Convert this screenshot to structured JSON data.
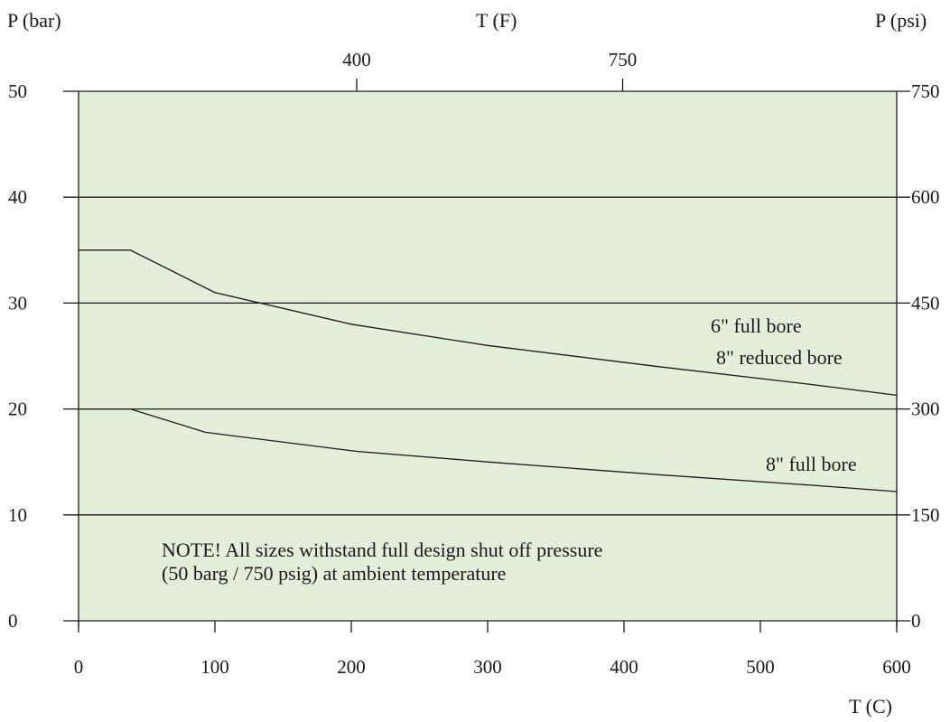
{
  "chart_data": {
    "type": "line",
    "x_axis": {
      "label": "T (C)",
      "range": [
        0,
        600
      ],
      "ticks": [
        0,
        100,
        200,
        300,
        400,
        500,
        600
      ]
    },
    "x_axis_top": {
      "label": "T (F)",
      "ticks": [
        {
          "label": "400",
          "celsius": 204
        },
        {
          "label": "750",
          "celsius": 399
        }
      ]
    },
    "y_axis_left": {
      "label": "P (bar)",
      "range": [
        0,
        50
      ],
      "ticks": [
        0,
        10,
        20,
        30,
        40,
        50
      ]
    },
    "y_axis_right": {
      "label": "P (psi)",
      "ticks": [
        "0",
        "150",
        "300",
        "450",
        "600",
        "750"
      ]
    },
    "grid": {
      "horizontal": true,
      "vertical": false
    },
    "background_color": "#e4efdb",
    "series": [
      {
        "label_lines": [
          "6\" full bore",
          "8\" reduced bore"
        ],
        "x": [
          0,
          38,
          100,
          200,
          300,
          425,
          538,
          600
        ],
        "y": [
          35,
          35,
          31,
          28,
          26,
          24,
          22.3,
          21.3
        ]
      },
      {
        "label_lines": [
          "8\" full bore"
        ],
        "x": [
          0,
          38,
          93,
          204,
          300,
          425,
          538,
          600
        ],
        "y": [
          20,
          20,
          17.8,
          16,
          15,
          13.8,
          12.8,
          12.2
        ]
      }
    ],
    "annotation_lines": [
      "NOTE! All sizes withstand full design shut off pressure",
      "(50 barg / 750 psig) at ambient temperature"
    ]
  }
}
